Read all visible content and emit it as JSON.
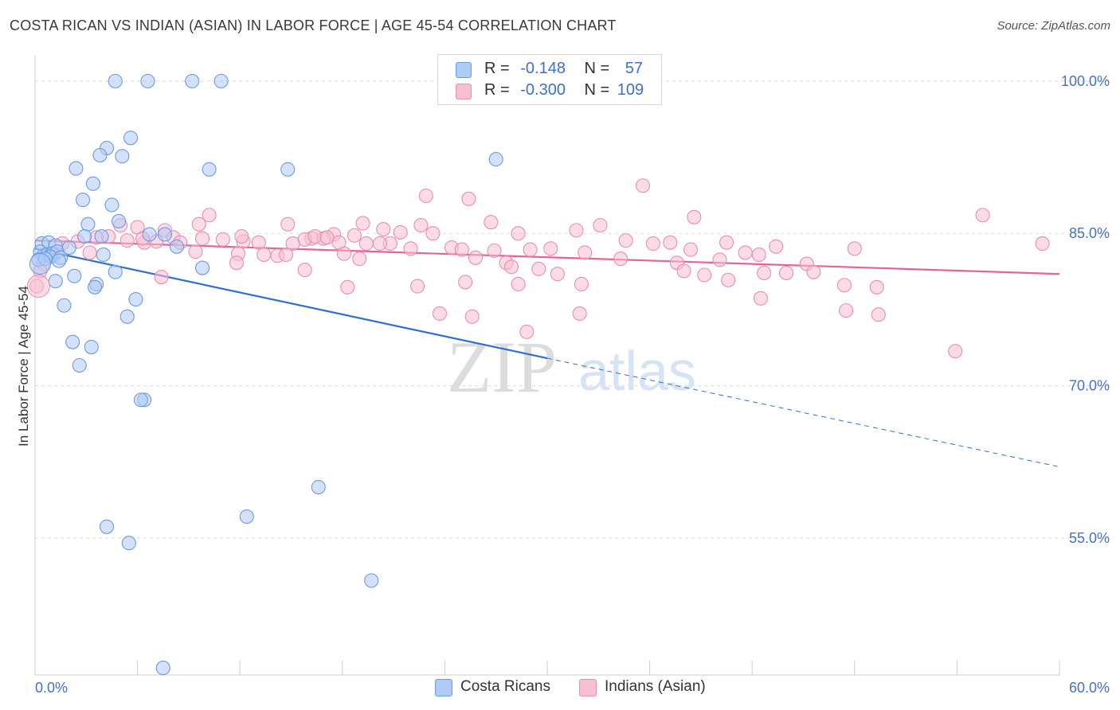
{
  "title": "COSTA RICAN VS INDIAN (ASIAN) IN LABOR FORCE | AGE 45-54 CORRELATION CHART",
  "source": "Source: ZipAtlas.com",
  "watermark": {
    "zip": "ZIP",
    "atlas": "atlas"
  },
  "legend_top": {
    "rows": [
      {
        "r_label": "R =",
        "r_value": "-0.148",
        "n_label": "N =",
        "n_value": "57",
        "color": "#aecbf5"
      },
      {
        "r_label": "R =",
        "r_value": "-0.300",
        "n_label": "N =",
        "n_value": "109",
        "color": "#f7bfd1"
      }
    ]
  },
  "legend_bottom": [
    {
      "label": "Costa Ricans",
      "color": "#aecbf5"
    },
    {
      "label": "Indians (Asian)",
      "color": "#f7bfd1"
    }
  ],
  "chart_data": {
    "type": "scatter",
    "title": "COSTA RICAN VS INDIAN (ASIAN) IN LABOR FORCE | AGE 45-54 CORRELATION CHART",
    "xlabel": "",
    "ylabel": "In Labor Force | Age 45-54",
    "xlim": [
      0,
      60
    ],
    "ylim": [
      41.5,
      102.5
    ],
    "x_tick_labels": [
      "0.0%",
      "60.0%"
    ],
    "y_ticks": [
      55,
      70,
      85,
      100
    ],
    "y_tick_labels": [
      "55.0%",
      "70.0%",
      "85.0%",
      "100.0%"
    ],
    "grid": true,
    "colors": {
      "blue_fill": "#aecbf5",
      "blue_stroke": "#6c9be0",
      "blue_line": "#2f6fcf",
      "pink_fill": "#f7bfd1",
      "pink_stroke": "#e88fae",
      "pink_line": "#e0669a",
      "tick_label": "#4472c4"
    },
    "series": [
      {
        "name": "Costa Ricans",
        "trend": {
          "x0": 0,
          "y0": 83.5,
          "x1": 30,
          "y1": 72.7,
          "dash_to_x": 60,
          "dash_to_y": 62.0
        },
        "points": [
          [
            4.7,
            100
          ],
          [
            6.6,
            100
          ],
          [
            9.2,
            100
          ],
          [
            10.9,
            100
          ],
          [
            5.6,
            94.4
          ],
          [
            4.2,
            93.4
          ],
          [
            3.8,
            92.7
          ],
          [
            5.1,
            92.6
          ],
          [
            2.4,
            91.4
          ],
          [
            10.2,
            91.3
          ],
          [
            14.8,
            91.3
          ],
          [
            27.0,
            92.3
          ],
          [
            3.4,
            89.9
          ],
          [
            2.8,
            88.3
          ],
          [
            4.5,
            87.8
          ],
          [
            4.9,
            86.2
          ],
          [
            3.1,
            85.9
          ],
          [
            0.4,
            84.0
          ],
          [
            0.8,
            84.1
          ],
          [
            1.2,
            83.8
          ],
          [
            0.3,
            83.2
          ],
          [
            0.5,
            82.8
          ],
          [
            0.7,
            82.9
          ],
          [
            1.0,
            83.0
          ],
          [
            1.3,
            83.2
          ],
          [
            0.9,
            82.7
          ],
          [
            1.5,
            82.6
          ],
          [
            2.0,
            83.6
          ],
          [
            2.9,
            84.7
          ],
          [
            3.9,
            84.7
          ],
          [
            6.7,
            84.9
          ],
          [
            7.6,
            84.9
          ],
          [
            8.3,
            83.7
          ],
          [
            4.0,
            82.9
          ],
          [
            4.7,
            81.2
          ],
          [
            9.8,
            81.6
          ],
          [
            0.2,
            82.4
          ],
          [
            2.3,
            80.8
          ],
          [
            3.6,
            80.0
          ],
          [
            3.5,
            79.7
          ],
          [
            1.2,
            80.3
          ],
          [
            5.9,
            78.5
          ],
          [
            1.7,
            77.9
          ],
          [
            5.4,
            76.8
          ],
          [
            2.2,
            74.3
          ],
          [
            3.3,
            73.8
          ],
          [
            2.6,
            72.0
          ],
          [
            6.4,
            68.6
          ],
          [
            6.2,
            68.6
          ],
          [
            16.6,
            60.0
          ],
          [
            12.4,
            57.1
          ],
          [
            4.2,
            56.1
          ],
          [
            5.5,
            54.5
          ],
          [
            19.7,
            50.8
          ],
          [
            7.5,
            42.2
          ],
          [
            1.4,
            82.3
          ],
          [
            0.6,
            82.5
          ]
        ]
      },
      {
        "name": "Indians (Asian)",
        "trend": {
          "x0": 0,
          "y0": 84.3,
          "x1": 60,
          "y1": 81.0
        },
        "points": [
          [
            35.6,
            89.7
          ],
          [
            22.9,
            88.7
          ],
          [
            25.4,
            88.4
          ],
          [
            10.2,
            86.8
          ],
          [
            38.6,
            86.6
          ],
          [
            26.7,
            86.1
          ],
          [
            9.6,
            85.9
          ],
          [
            14.8,
            85.9
          ],
          [
            19.2,
            86.0
          ],
          [
            22.6,
            85.8
          ],
          [
            33.1,
            85.8
          ],
          [
            5.0,
            85.8
          ],
          [
            6.0,
            85.6
          ],
          [
            7.6,
            85.3
          ],
          [
            20.4,
            85.4
          ],
          [
            31.7,
            85.3
          ],
          [
            21.4,
            85.1
          ],
          [
            23.3,
            85.0
          ],
          [
            28.3,
            85.0
          ],
          [
            17.5,
            84.9
          ],
          [
            18.7,
            84.8
          ],
          [
            8.1,
            84.6
          ],
          [
            9.8,
            84.5
          ],
          [
            11.0,
            84.4
          ],
          [
            16.2,
            84.5
          ],
          [
            16.9,
            84.5
          ],
          [
            15.8,
            84.4
          ],
          [
            3.6,
            84.6
          ],
          [
            4.3,
            84.7
          ],
          [
            5.4,
            84.3
          ],
          [
            6.4,
            84.1
          ],
          [
            7.1,
            84.2
          ],
          [
            8.5,
            84.1
          ],
          [
            12.2,
            84.2
          ],
          [
            13.1,
            84.1
          ],
          [
            15.1,
            84.0
          ],
          [
            17.8,
            84.1
          ],
          [
            19.4,
            84.0
          ],
          [
            20.8,
            84.0
          ],
          [
            2.5,
            84.2
          ],
          [
            1.6,
            84.0
          ],
          [
            36.2,
            84.0
          ],
          [
            37.2,
            84.1
          ],
          [
            40.5,
            84.1
          ],
          [
            43.4,
            83.7
          ],
          [
            48.0,
            83.5
          ],
          [
            59.0,
            84.0
          ],
          [
            55.5,
            86.8
          ],
          [
            22.0,
            83.5
          ],
          [
            24.4,
            83.6
          ],
          [
            25.0,
            83.4
          ],
          [
            26.9,
            83.3
          ],
          [
            29.0,
            83.4
          ],
          [
            30.2,
            83.5
          ],
          [
            32.2,
            83.1
          ],
          [
            38.4,
            83.4
          ],
          [
            41.6,
            83.1
          ],
          [
            42.4,
            82.9
          ],
          [
            11.9,
            83.0
          ],
          [
            13.4,
            82.9
          ],
          [
            14.2,
            82.8
          ],
          [
            14.7,
            82.9
          ],
          [
            18.1,
            83.0
          ],
          [
            9.4,
            83.2
          ],
          [
            3.2,
            83.1
          ],
          [
            1.1,
            82.8
          ],
          [
            0.5,
            82.0
          ],
          [
            19.0,
            82.5
          ],
          [
            25.8,
            82.6
          ],
          [
            27.6,
            82.1
          ],
          [
            34.3,
            82.5
          ],
          [
            37.6,
            82.1
          ],
          [
            40.1,
            82.4
          ],
          [
            45.2,
            82.0
          ],
          [
            11.8,
            82.1
          ],
          [
            15.8,
            81.4
          ],
          [
            27.9,
            81.7
          ],
          [
            29.5,
            81.5
          ],
          [
            30.6,
            81.0
          ],
          [
            38.0,
            81.3
          ],
          [
            39.2,
            80.9
          ],
          [
            42.7,
            81.1
          ],
          [
            44.0,
            81.1
          ],
          [
            45.6,
            81.2
          ],
          [
            7.4,
            80.7
          ],
          [
            40.6,
            80.4
          ],
          [
            25.2,
            80.2
          ],
          [
            28.3,
            80.0
          ],
          [
            32.0,
            80.0
          ],
          [
            22.4,
            79.8
          ],
          [
            18.3,
            79.7
          ],
          [
            49.3,
            79.7
          ],
          [
            47.4,
            79.9
          ],
          [
            42.5,
            78.6
          ],
          [
            23.7,
            77.1
          ],
          [
            25.6,
            76.8
          ],
          [
            31.9,
            77.1
          ],
          [
            47.5,
            77.4
          ],
          [
            49.4,
            77.0
          ],
          [
            53.9,
            73.4
          ],
          [
            28.8,
            75.3
          ],
          [
            0.1,
            79.8
          ],
          [
            0.3,
            81.3
          ],
          [
            6.3,
            84.5
          ],
          [
            12.1,
            84.7
          ],
          [
            16.4,
            84.7
          ],
          [
            17.1,
            84.6
          ],
          [
            34.6,
            84.3
          ],
          [
            20.2,
            84.0
          ]
        ]
      }
    ]
  }
}
